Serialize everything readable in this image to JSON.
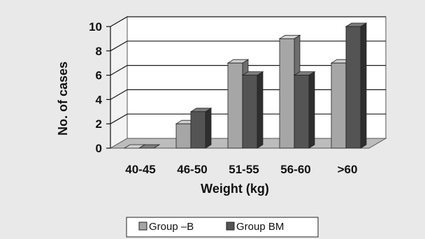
{
  "chart_data": {
    "type": "bar",
    "categories": [
      "40-45",
      "46-50",
      "51-55",
      "56-60",
      ">60"
    ],
    "series": [
      {
        "name": "Group –B",
        "values": [
          0,
          2,
          7,
          9,
          7
        ]
      },
      {
        "name": "Group BM",
        "values": [
          0,
          3,
          6,
          6,
          10
        ]
      }
    ],
    "xlabel": "Weight (kg)",
    "ylabel": "No. of cases",
    "ylim": [
      0,
      10
    ],
    "yticks": [
      0,
      2,
      4,
      6,
      8,
      10
    ],
    "grid": true,
    "legend_position": "bottom",
    "style": "3d-clustered",
    "colors": {
      "series": [
        "#a6a6a6",
        "#545454"
      ],
      "series_top": [
        "#cfcfcf",
        "#7c7c7c"
      ],
      "series_side": [
        "#6e6e6e",
        "#2e2e2e"
      ],
      "background": "#e9e9e9",
      "wall": "#ffffff",
      "floor": "#bcbcbc",
      "grid": "#1a1a1a"
    }
  }
}
